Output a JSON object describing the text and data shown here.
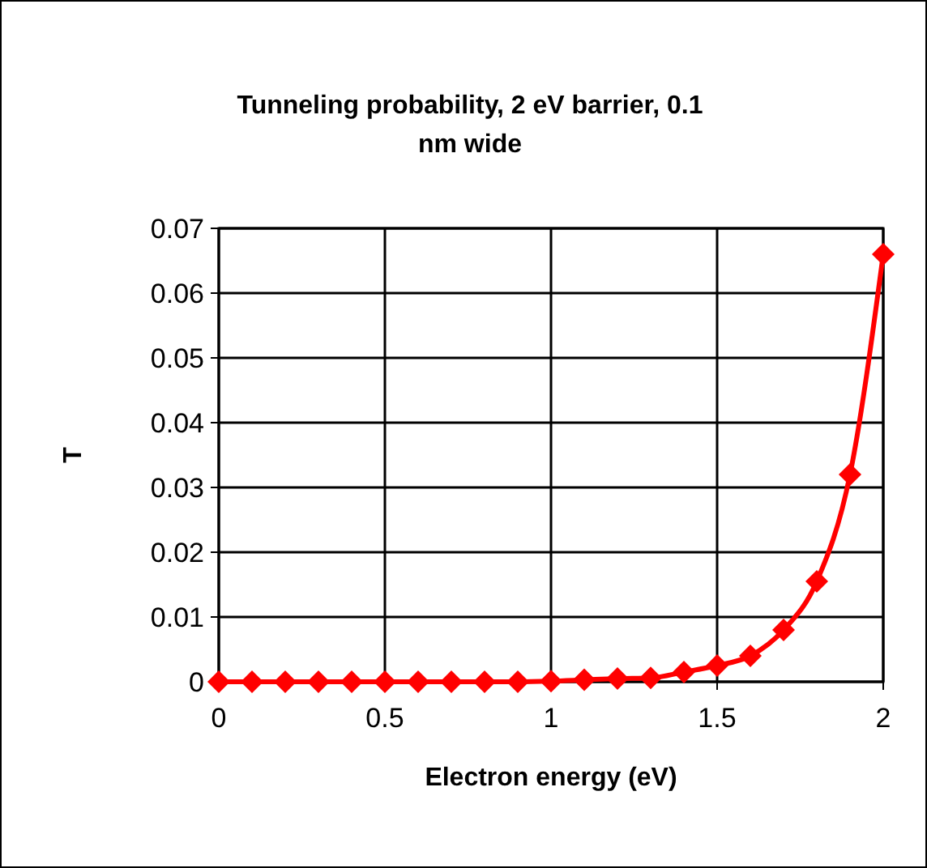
{
  "chart_data": {
    "type": "line",
    "title": "Tunneling probability, 2 eV barrier, 0.1 nm wide",
    "xlabel": "Electron energy (eV)",
    "ylabel": "T",
    "x": [
      0,
      0.1,
      0.2,
      0.3,
      0.4,
      0.5,
      0.6,
      0.7,
      0.8,
      0.9,
      1,
      1.1,
      1.2,
      1.3,
      1.4,
      1.5,
      1.6,
      1.7,
      1.8,
      1.9,
      2
    ],
    "series": [
      {
        "color": "#ff0000",
        "values": [
          0,
          0,
          0,
          0,
          0,
          0,
          0,
          0,
          0,
          0,
          0.0001,
          0.0003,
          0.0005,
          0.0006,
          0.0015,
          0.0025,
          0.004,
          0.008,
          0.0155,
          0.032,
          0.066
        ]
      }
    ],
    "xlim": [
      0,
      2
    ],
    "xticks": [
      0,
      0.5,
      1,
      1.5,
      2
    ],
    "ylim": [
      0,
      0.07
    ],
    "yticks": [
      0,
      0.01,
      0.02,
      0.03,
      0.04,
      0.05,
      0.06,
      0.07
    ],
    "grid": true,
    "marker": "diamond",
    "line_style": "solid"
  }
}
